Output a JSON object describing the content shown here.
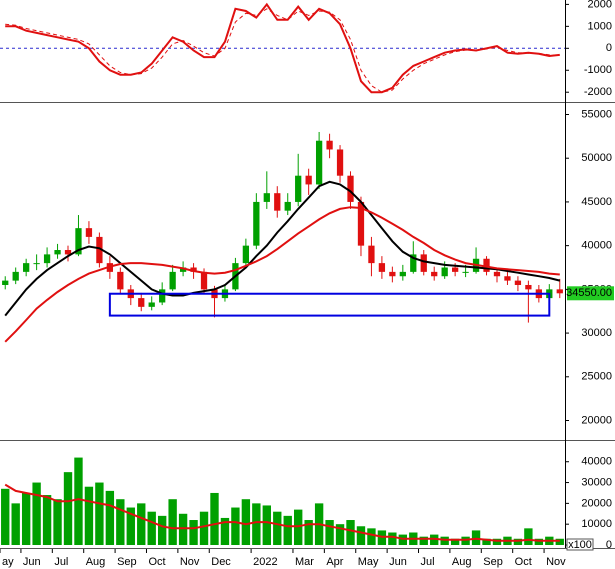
{
  "chart_data": [
    {
      "type": "line",
      "ylim": [
        -2400,
        2200
      ],
      "yticks": [
        2000,
        1000,
        0,
        -1000,
        -2000
      ],
      "reference_line": {
        "value": 0,
        "color": "#2a2ad0"
      },
      "lines": [
        {
          "color": "#e01010",
          "dash": false,
          "values": [
            1000,
            1000,
            800,
            700,
            600,
            500,
            400,
            300,
            0,
            -600,
            -1000,
            -1200,
            -1200,
            -1100,
            -700,
            -100,
            500,
            300,
            -100,
            -400,
            -400,
            300,
            1800,
            1700,
            1400,
            2000,
            1300,
            1300,
            1900,
            1300,
            1800,
            1600,
            1100,
            0,
            -1500,
            -2000,
            -2000,
            -1800,
            -1200,
            -800,
            -600,
            -400,
            -200,
            -100,
            -50,
            -100,
            0,
            100,
            -200,
            -250,
            -200,
            -250,
            -350,
            -300
          ]
        },
        {
          "color": "#e01010",
          "dash": true,
          "values": [
            1100,
            1050,
            900,
            800,
            700,
            600,
            500,
            400,
            200,
            -300,
            -800,
            -1100,
            -1200,
            -1150,
            -900,
            -400,
            200,
            350,
            100,
            -200,
            -350,
            0,
            1200,
            1600,
            1500,
            1800,
            1500,
            1300,
            1700,
            1500,
            1700,
            1650,
            1300,
            400,
            -1000,
            -1700,
            -2000,
            -1900,
            -1400,
            -1000,
            -700,
            -500,
            -300,
            -150,
            -80,
            -90,
            -30,
            50,
            -100,
            -200,
            -220,
            -230,
            -300,
            -320
          ]
        }
      ]
    },
    {
      "type": "candlestick",
      "ylim": [
        18000,
        56200
      ],
      "yticks": [
        55000,
        50000,
        45000,
        40000,
        35000,
        30000,
        25000,
        20000
      ],
      "up_color": "#00a000",
      "down_color": "#e01010",
      "open": [
        35500,
        36000,
        37000,
        38000,
        38000,
        39000,
        39500,
        39000,
        42000,
        41000,
        38000,
        37000,
        35000,
        34000,
        33000,
        33500,
        35000,
        37000,
        37500,
        37000,
        35000,
        34000,
        35000,
        38000,
        40000,
        45000,
        46000,
        44000,
        45000,
        48000,
        47000,
        52000,
        51000,
        48000,
        45000,
        40000,
        38000,
        37000,
        36500,
        37000,
        39000,
        37000,
        36500,
        37500,
        37000,
        37000,
        38500,
        37000,
        36500,
        36000,
        35500,
        35000,
        34000,
        35000
      ],
      "high": [
        36500,
        37500,
        38500,
        39000,
        39800,
        40200,
        40000,
        43500,
        42800,
        41500,
        38800,
        37500,
        35500,
        34600,
        34200,
        35800,
        37800,
        38200,
        38000,
        37400,
        35400,
        35600,
        38600,
        40800,
        46000,
        48500,
        46800,
        46000,
        50500,
        48800,
        53000,
        52800,
        51500,
        48500,
        45600,
        41000,
        38800,
        37600,
        37800,
        40500,
        39500,
        37600,
        38200,
        38000,
        37800,
        39800,
        38800,
        37500,
        37000,
        36500,
        36000,
        35500,
        35600,
        36200
      ],
      "low": [
        35000,
        35600,
        36500,
        37200,
        37500,
        38500,
        38200,
        38800,
        40200,
        37500,
        36200,
        34500,
        33200,
        32500,
        32600,
        33200,
        34800,
        36500,
        36200,
        34500,
        31800,
        33600,
        34800,
        37600,
        39600,
        44200,
        43200,
        43500,
        44500,
        45800,
        46500,
        50000,
        47200,
        44200,
        38800,
        36500,
        36200,
        35800,
        36000,
        36800,
        36600,
        36000,
        36200,
        36500,
        36400,
        36800,
        36600,
        35800,
        35500,
        34800,
        31200,
        33500,
        33600,
        34000
      ],
      "close": [
        36000,
        37000,
        38000,
        38000,
        39000,
        39500,
        39000,
        42000,
        41000,
        38000,
        37000,
        35000,
        34000,
        33000,
        33500,
        35000,
        37000,
        37500,
        37000,
        35000,
        34000,
        35000,
        38000,
        40000,
        45000,
        46000,
        44000,
        45000,
        48000,
        47000,
        52000,
        51000,
        48000,
        45000,
        40000,
        38000,
        37000,
        36500,
        37000,
        39000,
        37000,
        36500,
        37500,
        37000,
        37000,
        38500,
        37000,
        36500,
        36000,
        35500,
        35000,
        34000,
        35000,
        34550
      ],
      "lines": [
        {
          "color": "#000000",
          "values": [
            32000,
            33500,
            35000,
            36200,
            37200,
            38000,
            38800,
            39500,
            39900,
            39700,
            39000,
            38000,
            37000,
            36000,
            35000,
            34500,
            34300,
            34300,
            34600,
            34800,
            35000,
            35500,
            36500,
            37500,
            38800,
            40000,
            41500,
            42800,
            44200,
            45500,
            46800,
            47300,
            47000,
            46200,
            45000,
            43500,
            42000,
            40500,
            39300,
            38600,
            38200,
            38000,
            37800,
            37700,
            37600,
            37500,
            37400,
            37300,
            37100,
            36900,
            36700,
            36500,
            36300,
            36000
          ]
        },
        {
          "color": "#e01010",
          "values": [
            29000,
            30200,
            31500,
            32800,
            33800,
            34700,
            35500,
            36200,
            36800,
            37200,
            37600,
            37900,
            38000,
            38000,
            37900,
            37800,
            37600,
            37400,
            37100,
            36900,
            36800,
            36900,
            37200,
            37700,
            38200,
            38800,
            39600,
            40500,
            41400,
            42200,
            43000,
            43700,
            44200,
            44400,
            44300,
            43800,
            43200,
            42500,
            41800,
            41000,
            40300,
            39500,
            38900,
            38400,
            38000,
            37800,
            37600,
            37400,
            37300,
            37200,
            37100,
            37000,
            36800,
            36700
          ]
        }
      ],
      "box": {
        "color": "#0000e0",
        "y": [
          32000,
          34500
        ],
        "x_index": [
          10,
          52
        ]
      },
      "last_price": {
        "value": 34550,
        "label": "34550.00",
        "color": "#22cc22"
      }
    },
    {
      "type": "bar",
      "ylim": [
        0,
        49000
      ],
      "yticks": [
        40000,
        30000,
        20000,
        10000,
        0
      ],
      "color": "#00a000",
      "unit_label": "x100",
      "categories": [
        "ay",
        null,
        "Jun",
        null,
        null,
        "Jul",
        null,
        null,
        "Aug",
        null,
        null,
        "Sep",
        null,
        null,
        "Oct",
        null,
        null,
        "Nov",
        null,
        null,
        "Dec",
        null,
        null,
        null,
        "2022",
        null,
        null,
        null,
        "Mar",
        null,
        null,
        "Apr",
        null,
        null,
        "May",
        null,
        null,
        "Jun",
        null,
        null,
        "Jul",
        null,
        null,
        "Aug",
        null,
        null,
        "Sep",
        null,
        null,
        "Oct",
        null,
        null,
        "Nov",
        null
      ],
      "values": [
        27000,
        20000,
        25000,
        30000,
        24000,
        22000,
        35000,
        42000,
        28000,
        30000,
        26000,
        22000,
        18000,
        20000,
        16000,
        14000,
        22000,
        15000,
        12000,
        16000,
        25000,
        13000,
        18000,
        22000,
        20000,
        19000,
        16000,
        14000,
        17000,
        12000,
        20000,
        12000,
        10000,
        12000,
        9000,
        8000,
        7000,
        6000,
        5000,
        6000,
        4000,
        5000,
        4000,
        3000,
        4000,
        7000,
        3000,
        3000,
        4000,
        3000,
        8000,
        3000,
        4000,
        3000
      ],
      "lines": [
        {
          "color": "#e01010",
          "values": [
            29000,
            26000,
            25000,
            24000,
            23000,
            21000,
            21000,
            22000,
            21000,
            20000,
            19000,
            17000,
            15000,
            13000,
            11000,
            9000,
            8000,
            8000,
            8000,
            9000,
            10000,
            11000,
            11000,
            10000,
            11000,
            11000,
            10000,
            9000,
            9000,
            10000,
            10000,
            9000,
            8000,
            7000,
            6000,
            5000,
            4000,
            4000,
            3000,
            3000,
            3000,
            3000,
            2500,
            2500,
            2500,
            3000,
            2500,
            2000,
            2000,
            2000,
            2500,
            2000,
            2000,
            2000
          ]
        }
      ]
    }
  ]
}
